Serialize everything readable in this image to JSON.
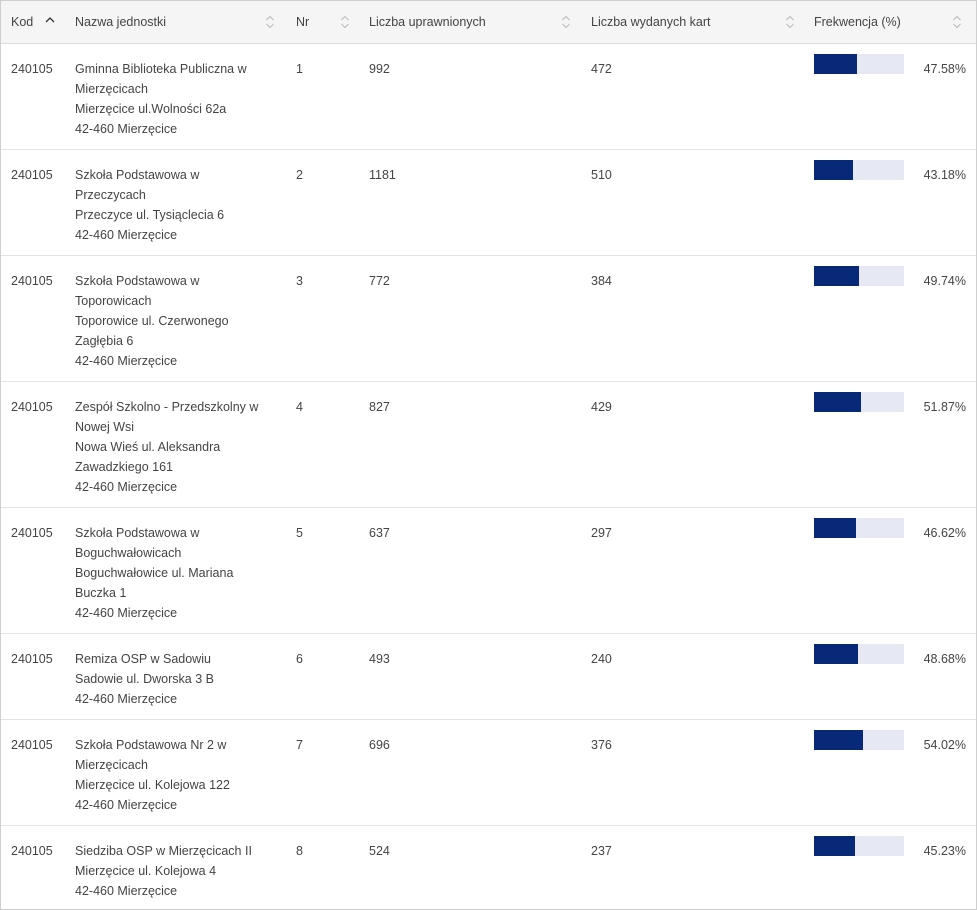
{
  "colors": {
    "bar_fill": "#082878",
    "bar_track": "#e6e9f4",
    "header_bg": "#f5f5f5"
  },
  "columns": [
    {
      "label": "Kod",
      "sort_icon": "chevron-up-icon"
    },
    {
      "label": "Nazwa jednostki",
      "sort_icon": "sort-icon"
    },
    {
      "label": "Nr",
      "sort_icon": "sort-icon"
    },
    {
      "label": "Liczba uprawnionych",
      "sort_icon": "sort-icon"
    },
    {
      "label": "Liczba wydanych kart",
      "sort_icon": "sort-icon"
    },
    {
      "label": "Frekwencja (%)",
      "sort_icon": "sort-icon"
    }
  ],
  "rows": [
    {
      "kod": "240105",
      "name": [
        "Gminna Biblioteka Publiczna w",
        "Mierzęcicach",
        "Mierzęcice ul.Wolności 62a",
        "42-460 Mierzęcice"
      ],
      "nr": "1",
      "uprawnionych": "992",
      "karty": "472",
      "frekwencja": "47.58%",
      "frekwencja_value": 47.58
    },
    {
      "kod": "240105",
      "name": [
        "Szkoła Podstawowa w",
        "Przeczycach",
        "Przeczyce ul. Tysiąclecia 6",
        "42-460 Mierzęcice"
      ],
      "nr": "2",
      "uprawnionych": "1181",
      "karty": "510",
      "frekwencja": "43.18%",
      "frekwencja_value": 43.18
    },
    {
      "kod": "240105",
      "name": [
        "Szkoła Podstawowa w",
        "Toporowicach",
        "Toporowice ul. Czerwonego",
        "Zagłębia 6",
        "42-460 Mierzęcice"
      ],
      "nr": "3",
      "uprawnionych": "772",
      "karty": "384",
      "frekwencja": "49.74%",
      "frekwencja_value": 49.74
    },
    {
      "kod": "240105",
      "name": [
        "Zespół Szkolno - Przedszkolny w",
        "Nowej Wsi",
        "Nowa Wieś ul. Aleksandra",
        "Zawadzkiego 161",
        "42-460 Mierzęcice"
      ],
      "nr": "4",
      "uprawnionych": "827",
      "karty": "429",
      "frekwencja": "51.87%",
      "frekwencja_value": 51.87
    },
    {
      "kod": "240105",
      "name": [
        "Szkoła Podstawowa w",
        "Boguchwałowicach",
        "Boguchwałowice ul. Mariana",
        "Buczka 1",
        "42-460 Mierzęcice"
      ],
      "nr": "5",
      "uprawnionych": "637",
      "karty": "297",
      "frekwencja": "46.62%",
      "frekwencja_value": 46.62
    },
    {
      "kod": "240105",
      "name": [
        "Remiza OSP w Sadowiu",
        "Sadowie ul. Dworska 3 B",
        "42-460 Mierzęcice"
      ],
      "nr": "6",
      "uprawnionych": "493",
      "karty": "240",
      "frekwencja": "48.68%",
      "frekwencja_value": 48.68
    },
    {
      "kod": "240105",
      "name": [
        "Szkoła Podstawowa Nr 2 w",
        "Mierzęcicach",
        "Mierzęcice ul. Kolejowa 122",
        "42-460 Mierzęcice"
      ],
      "nr": "7",
      "uprawnionych": "696",
      "karty": "376",
      "frekwencja": "54.02%",
      "frekwencja_value": 54.02
    },
    {
      "kod": "240105",
      "name": [
        "Siedziba OSP w Mierzęcicach II",
        "Mierzęcice ul. Kolejowa 4",
        "42-460 Mierzęcice"
      ],
      "nr": "8",
      "uprawnionych": "524",
      "karty": "237",
      "frekwencja": "45.23%",
      "frekwencja_value": 45.23
    }
  ]
}
